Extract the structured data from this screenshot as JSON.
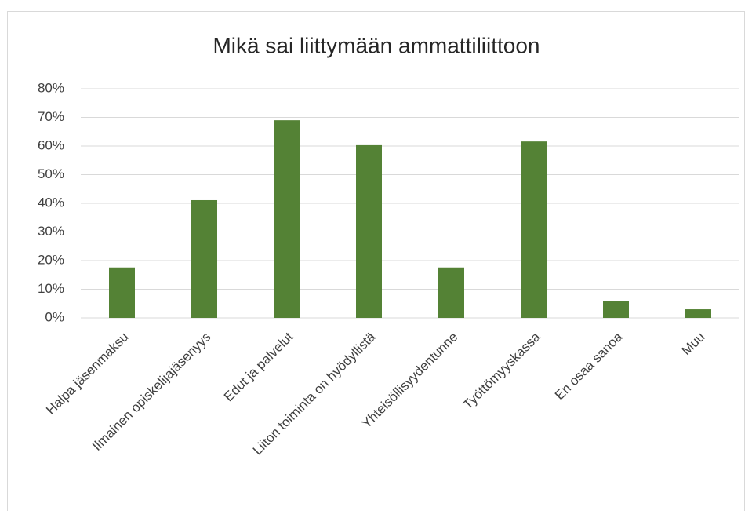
{
  "chart_data": {
    "type": "bar",
    "title": "Mikä sai liittymään ammattiliittoon",
    "categories": [
      "Halpa jäsenmaksu",
      "Ilmainen opiskelijajäsenyys",
      "Edut ja palvelut",
      "Liiton toiminta on hyödyllistä",
      "Yhteisöllisyydentunne",
      "Työttömyyskassa",
      "En osaa sanoa",
      "Muu"
    ],
    "values": [
      17.6,
      41.1,
      69.0,
      60.3,
      17.6,
      61.6,
      6.0,
      3.0
    ],
    "color": "#548235",
    "ylim": [
      0,
      80
    ],
    "yticks": [
      {
        "value": 0,
        "label": "0%"
      },
      {
        "value": 10,
        "label": "10%"
      },
      {
        "value": 20,
        "label": "20%"
      },
      {
        "value": 30,
        "label": "30%"
      },
      {
        "value": 40,
        "label": "40%"
      },
      {
        "value": 50,
        "label": "50%"
      },
      {
        "value": 60,
        "label": "60%"
      },
      {
        "value": 70,
        "label": "70%"
      },
      {
        "value": 80,
        "label": "80%"
      }
    ],
    "grid": true
  }
}
